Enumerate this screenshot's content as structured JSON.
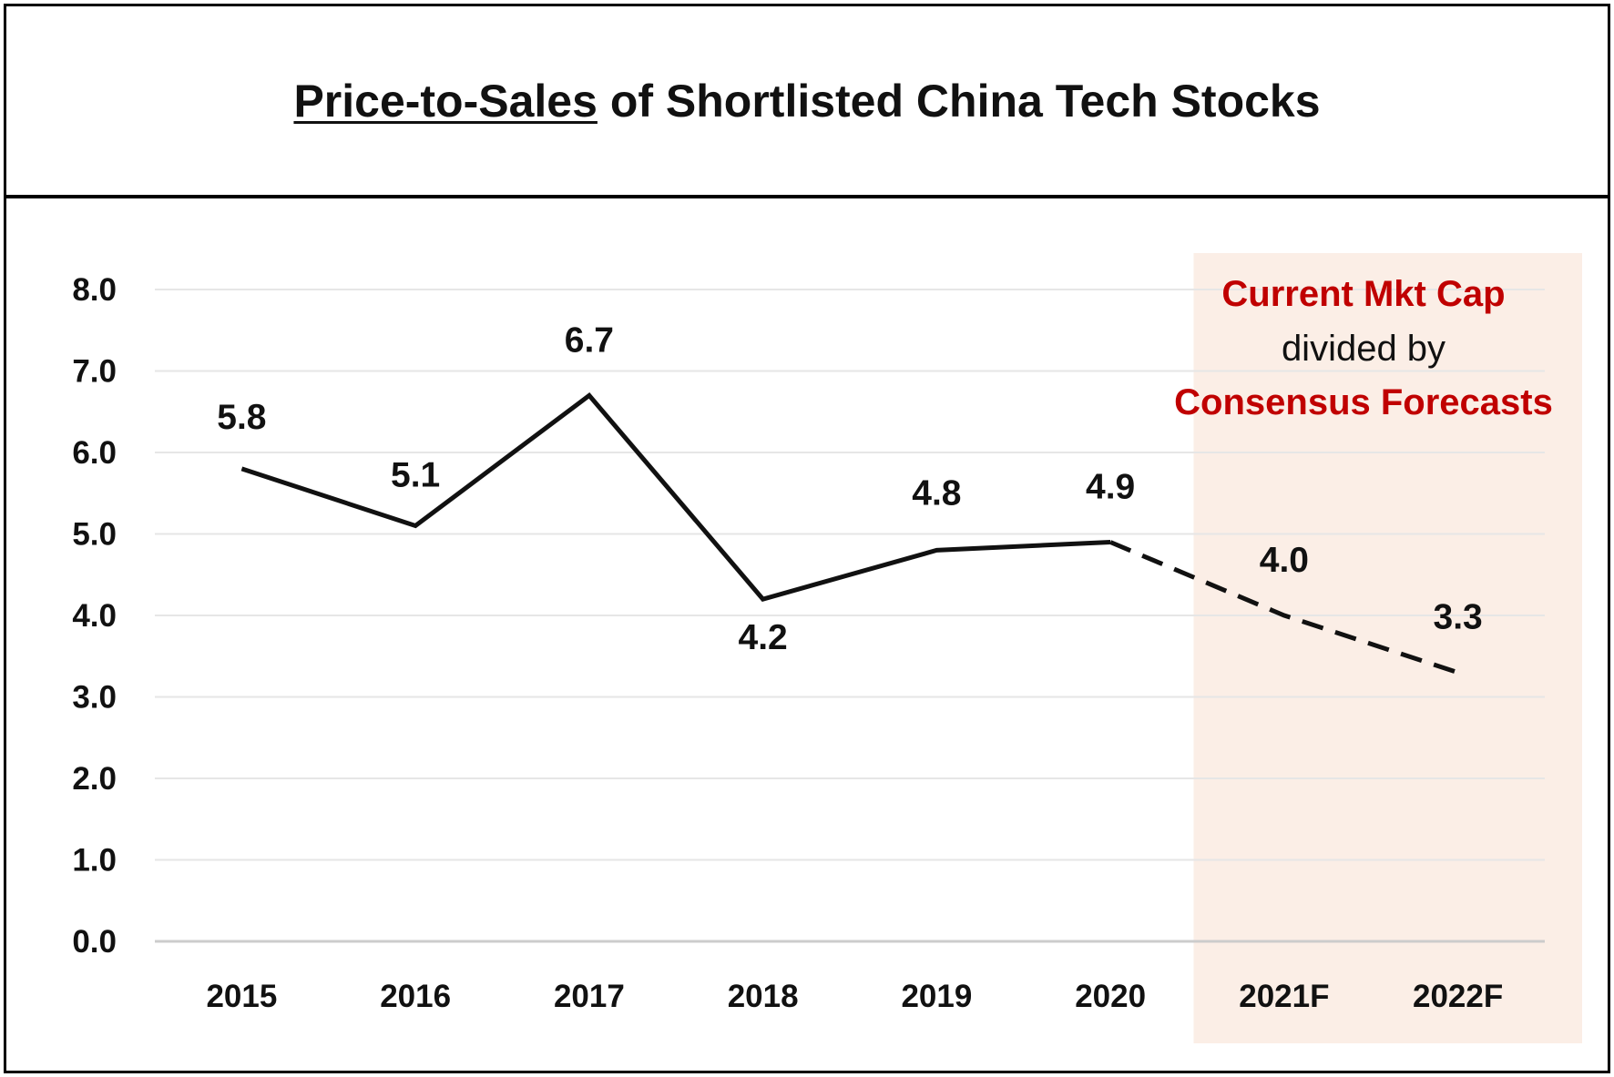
{
  "title": {
    "underlined": "Price-to-Sales",
    "rest": " of Shortlisted China Tech Stocks"
  },
  "forecast_note": {
    "line1": "Current Mkt Cap",
    "line2": "divided by",
    "line3": "Consensus Forecasts"
  },
  "colors": {
    "line": "#111111",
    "gridline": "#e6e6e6",
    "axis": "#cccccc",
    "forecast_shade": "#fbeee6",
    "accent_text": "#c00000"
  },
  "chart_data": {
    "type": "line",
    "categories": [
      "2015",
      "2016",
      "2017",
      "2018",
      "2019",
      "2020",
      "2021F",
      "2022F"
    ],
    "series": [
      {
        "values": [
          5.8,
          5.1,
          6.7,
          4.2,
          4.8,
          4.9,
          4.0,
          3.3
        ],
        "data_labels": [
          "5.8",
          "5.1",
          "6.7",
          "4.2",
          "4.8",
          "4.9",
          "4.0",
          "3.3"
        ],
        "forecast_from_index": 5,
        "style_actual": "solid",
        "style_forecast": "dashed"
      }
    ],
    "ylim": [
      0,
      8
    ],
    "yticks": [
      "0.0",
      "1.0",
      "2.0",
      "3.0",
      "4.0",
      "5.0",
      "6.0",
      "7.0",
      "8.0"
    ],
    "ytick_values": [
      0,
      1,
      2,
      3,
      4,
      5,
      6,
      7,
      8
    ],
    "shaded_categories": [
      "2021F",
      "2022F"
    ],
    "grid": true,
    "legend": "none"
  }
}
